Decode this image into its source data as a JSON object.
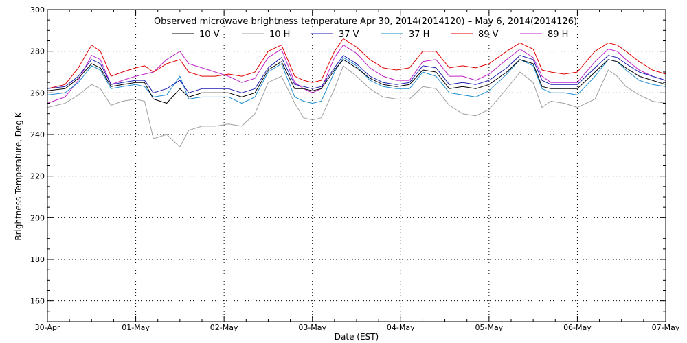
{
  "chart_data": {
    "type": "line",
    "title": "Observed microwave brightness temperature Apr 30, 2014(2014120) – May  6, 2014(2014126)",
    "xlabel": "Date (EST)",
    "ylabel": "Brightness Temperature, Deg K",
    "ylim": [
      150,
      300
    ],
    "xlim": [
      0,
      7
    ],
    "yticks": [
      160,
      180,
      200,
      220,
      240,
      260,
      280,
      300
    ],
    "xticks": [
      {
        "x": 0,
        "label": "30-Apr"
      },
      {
        "x": 1,
        "label": "01-May"
      },
      {
        "x": 2,
        "label": "02-May"
      },
      {
        "x": 3,
        "label": "03-May"
      },
      {
        "x": 4,
        "label": "04-May"
      },
      {
        "x": 5,
        "label": "05-May"
      },
      {
        "x": 6,
        "label": "06-May"
      },
      {
        "x": 7,
        "label": "07-May"
      }
    ],
    "grid": true,
    "legend_position": "top",
    "x_units": "days since 30-Apr 00:00 EST",
    "series": [
      {
        "name": "10 V",
        "color": "#000000",
        "x": [
          0,
          0.2,
          0.35,
          0.5,
          0.6,
          0.72,
          0.85,
          1.0,
          1.1,
          1.2,
          1.35,
          1.5,
          1.6,
          1.75,
          1.9,
          2.05,
          2.2,
          2.35,
          2.5,
          2.65,
          2.8,
          2.9,
          3.0,
          3.1,
          3.25,
          3.35,
          3.5,
          3.65,
          3.8,
          3.95,
          4.1,
          4.25,
          4.4,
          4.55,
          4.7,
          4.85,
          5.0,
          5.2,
          5.35,
          5.5,
          5.6,
          5.7,
          5.85,
          6.0,
          6.2,
          6.35,
          6.45,
          6.55,
          6.7,
          6.85,
          7.0
        ],
        "y": [
          261,
          262,
          267,
          274,
          272,
          263,
          264,
          265,
          265,
          257,
          255,
          262,
          258,
          260,
          260,
          260,
          258,
          260,
          271,
          275,
          262,
          262,
          261,
          262,
          271,
          276,
          272,
          267,
          264,
          263,
          264,
          271,
          270,
          262,
          263,
          262,
          264,
          270,
          276,
          274,
          263,
          262,
          262,
          262,
          270,
          276,
          275,
          272,
          268,
          266,
          264
        ]
      },
      {
        "name": "10 H",
        "color": "#9e9e9e",
        "x": [
          0,
          0.2,
          0.35,
          0.5,
          0.6,
          0.72,
          0.85,
          1.0,
          1.1,
          1.2,
          1.35,
          1.5,
          1.6,
          1.75,
          1.9,
          2.05,
          2.2,
          2.35,
          2.5,
          2.65,
          2.8,
          2.9,
          3.0,
          3.1,
          3.25,
          3.35,
          3.5,
          3.65,
          3.8,
          3.95,
          4.1,
          4.25,
          4.4,
          4.55,
          4.7,
          4.85,
          5.0,
          5.2,
          5.35,
          5.5,
          5.6,
          5.7,
          5.85,
          6.0,
          6.2,
          6.35,
          6.45,
          6.55,
          6.7,
          6.85,
          7.0
        ],
        "y": [
          253,
          255,
          259,
          264,
          262,
          254,
          256,
          257,
          256,
          238,
          240,
          234,
          242,
          244,
          244,
          245,
          244,
          250,
          265,
          268,
          255,
          248,
          247,
          248,
          262,
          273,
          268,
          262,
          258,
          257,
          257,
          263,
          262,
          254,
          250,
          249,
          252,
          262,
          270,
          265,
          253,
          256,
          255,
          253,
          257,
          271,
          268,
          263,
          259,
          256,
          255
        ]
      },
      {
        "name": "37 V",
        "color": "#1c1cb0",
        "x": [
          0,
          0.2,
          0.35,
          0.5,
          0.6,
          0.72,
          0.85,
          1.0,
          1.1,
          1.2,
          1.35,
          1.5,
          1.6,
          1.75,
          1.9,
          2.05,
          2.2,
          2.35,
          2.5,
          2.65,
          2.8,
          2.9,
          3.0,
          3.1,
          3.25,
          3.35,
          3.5,
          3.65,
          3.8,
          3.95,
          4.1,
          4.25,
          4.4,
          4.55,
          4.7,
          4.85,
          5.0,
          5.2,
          5.35,
          5.5,
          5.6,
          5.7,
          5.85,
          6.0,
          6.2,
          6.35,
          6.45,
          6.55,
          6.7,
          6.85,
          7.0
        ],
        "y": [
          262,
          263,
          268,
          276,
          274,
          264,
          265,
          266,
          266,
          260,
          262,
          266,
          260,
          262,
          262,
          262,
          260,
          262,
          272,
          277,
          264,
          263,
          262,
          263,
          272,
          278,
          274,
          268,
          265,
          264,
          265,
          273,
          272,
          264,
          265,
          264,
          266,
          272,
          278,
          276,
          266,
          264,
          264,
          264,
          272,
          278,
          277,
          274,
          270,
          268,
          266
        ]
      },
      {
        "name": "37 H",
        "color": "#1e8fd0",
        "x": [
          0,
          0.2,
          0.35,
          0.5,
          0.6,
          0.72,
          0.85,
          1.0,
          1.1,
          1.2,
          1.35,
          1.5,
          1.6,
          1.75,
          1.9,
          2.05,
          2.2,
          2.35,
          2.5,
          2.65,
          2.8,
          2.9,
          3.0,
          3.1,
          3.25,
          3.35,
          3.5,
          3.65,
          3.8,
          3.95,
          4.1,
          4.25,
          4.4,
          4.55,
          4.7,
          4.85,
          5.0,
          5.2,
          5.35,
          5.5,
          5.6,
          5.7,
          5.85,
          6.0,
          6.2,
          6.35,
          6.45,
          6.55,
          6.7,
          6.85,
          7.0
        ],
        "y": [
          259,
          260,
          265,
          273,
          271,
          262,
          263,
          264,
          263,
          258,
          259,
          268,
          257,
          258,
          258,
          258,
          255,
          258,
          270,
          274,
          258,
          256,
          255,
          256,
          270,
          277,
          273,
          266,
          263,
          262,
          262,
          270,
          268,
          260,
          259,
          258,
          261,
          269,
          276,
          273,
          262,
          260,
          260,
          259,
          268,
          276,
          275,
          271,
          266,
          264,
          263
        ]
      },
      {
        "name": "89 V",
        "color": "#e00000",
        "x": [
          0,
          0.2,
          0.35,
          0.5,
          0.6,
          0.72,
          0.85,
          1.0,
          1.1,
          1.2,
          1.35,
          1.5,
          1.6,
          1.75,
          1.9,
          2.05,
          2.2,
          2.35,
          2.5,
          2.65,
          2.8,
          2.9,
          3.0,
          3.1,
          3.25,
          3.35,
          3.5,
          3.65,
          3.8,
          3.95,
          4.1,
          4.25,
          4.4,
          4.55,
          4.7,
          4.85,
          5.0,
          5.2,
          5.35,
          5.5,
          5.6,
          5.7,
          5.85,
          6.0,
          6.2,
          6.35,
          6.45,
          6.55,
          6.7,
          6.85,
          7.0
        ],
        "y": [
          262,
          264,
          272,
          283,
          280,
          268,
          270,
          272,
          273,
          270,
          274,
          276,
          270,
          268,
          268,
          269,
          268,
          270,
          280,
          283,
          268,
          266,
          265,
          266,
          280,
          286,
          282,
          276,
          272,
          271,
          272,
          280,
          280,
          272,
          273,
          272,
          274,
          280,
          284,
          281,
          271,
          270,
          269,
          270,
          280,
          284,
          283,
          280,
          275,
          271,
          269
        ]
      },
      {
        "name": "89 H",
        "color": "#c020c8",
        "x": [
          0,
          0.2,
          0.35,
          0.5,
          0.6,
          0.72,
          0.85,
          1.0,
          1.1,
          1.2,
          1.35,
          1.5,
          1.6,
          1.75,
          1.9,
          2.05,
          2.2,
          2.35,
          2.5,
          2.65,
          2.8,
          2.9,
          3.0,
          3.1,
          3.25,
          3.35,
          3.5,
          3.65,
          3.8,
          3.95,
          4.1,
          4.25,
          4.4,
          4.55,
          4.7,
          4.85,
          5.0,
          5.2,
          5.35,
          5.5,
          5.6,
          5.7,
          5.85,
          6.0,
          6.2,
          6.35,
          6.45,
          6.55,
          6.7,
          6.85,
          7.0
        ],
        "y": [
          255,
          258,
          266,
          278,
          276,
          264,
          266,
          268,
          269,
          270,
          276,
          280,
          274,
          272,
          270,
          268,
          265,
          267,
          277,
          281,
          265,
          262,
          260,
          262,
          277,
          283,
          279,
          272,
          268,
          266,
          266,
          275,
          276,
          268,
          268,
          266,
          269,
          276,
          281,
          277,
          268,
          265,
          265,
          265,
          275,
          281,
          280,
          276,
          271,
          268,
          266
        ]
      }
    ]
  }
}
